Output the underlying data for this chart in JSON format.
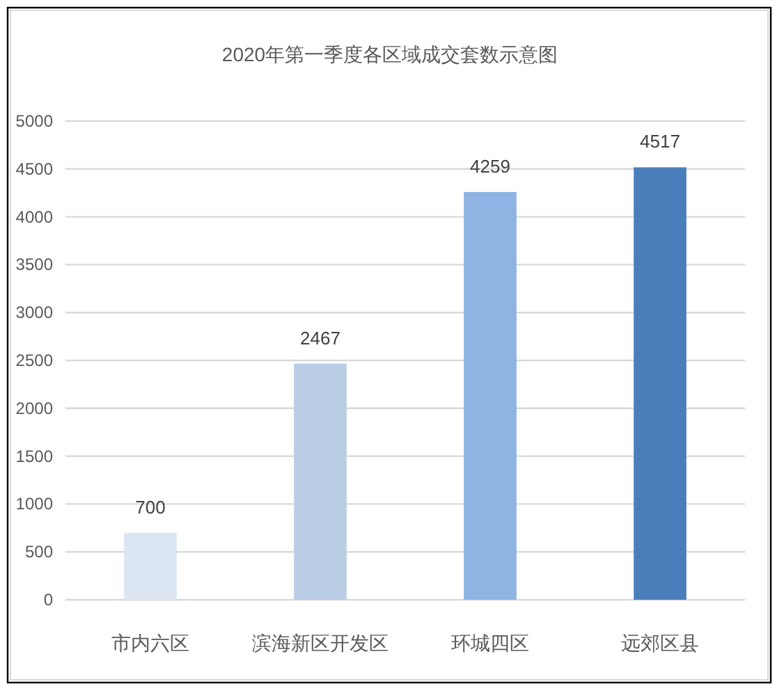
{
  "chart_data": {
    "type": "bar",
    "title": "2020年第一季度各区域成交套数示意图",
    "categories": [
      "市内六区",
      "滨海新区开发区",
      "环城四区",
      "远郊区县"
    ],
    "values": [
      700,
      2467,
      4259,
      4517
    ],
    "colors": [
      "#dce6f2",
      "#b9cde5",
      "#8eb4e3",
      "#4a7ebb"
    ],
    "ylim": [
      0,
      5000
    ],
    "yticks": [
      0,
      500,
      1000,
      1500,
      2000,
      2500,
      3000,
      3500,
      4000,
      4500,
      5000
    ],
    "grid": "y",
    "data_labels": true
  }
}
